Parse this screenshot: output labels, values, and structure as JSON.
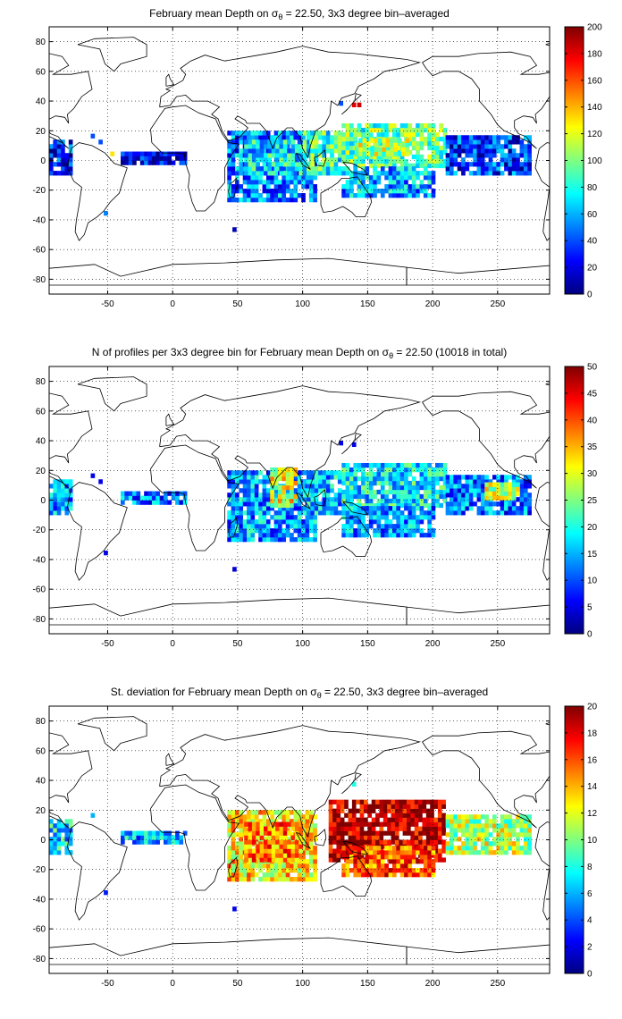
{
  "figure": {
    "panels": [
      {
        "title_before": "February ",
        "title_mean_word": "mean",
        "title_mid": " Depth on ",
        "title_sigma": "σ",
        "title_sub": "θ",
        "title_after": " = 22.50, 3x3 degree bin–averaged"
      },
      {
        "title_before": "N of profiles per 3x3 degree bin for February ",
        "title_mean_word": "mean",
        "title_mid": " Depth on ",
        "title_sigma": "σ",
        "title_sub": "θ",
        "title_after": " = 22.50 (10018 in total)"
      },
      {
        "title_before": "St. deviation for February ",
        "title_mean_word": "mean",
        "title_mid": " Depth on ",
        "title_sigma": "σ",
        "title_sub": "θ",
        "title_after": " = 22.50, 3x3 degree bin–averaged"
      }
    ],
    "colormap": "jet"
  },
  "chart_data": [
    {
      "type": "heatmap",
      "title": "February mean Depth on σθ = 22.50, 3x3 degree bin–averaged",
      "x_ticks": [
        -50,
        0,
        50,
        100,
        150,
        200,
        250
      ],
      "y_ticks": [
        -80,
        -60,
        -40,
        -20,
        0,
        20,
        40,
        60,
        80
      ],
      "xlim": [
        -95,
        290
      ],
      "ylim": [
        -90,
        90
      ],
      "grid": "dotted",
      "colorbar": {
        "range": [
          0,
          200
        ],
        "ticks": [
          0,
          20,
          40,
          60,
          80,
          100,
          120,
          140,
          160,
          180,
          200
        ]
      },
      "bin_size_deg": 3,
      "regions": [
        {
          "lon": [
            -95,
            -78
          ],
          "lat": [
            -10,
            14
          ],
          "value": 30
        },
        {
          "lon": [
            -40,
            10
          ],
          "lat": [
            -3,
            5
          ],
          "value": 20
        },
        {
          "lon": [
            42,
            110
          ],
          "lat": [
            -28,
            18
          ],
          "value": 50
        },
        {
          "lon": [
            55,
            100
          ],
          "lat": [
            -10,
            12
          ],
          "value": 70
        },
        {
          "lon": [
            100,
            130
          ],
          "lat": [
            -10,
            20
          ],
          "value": 85
        },
        {
          "lon": [
            130,
            210
          ],
          "lat": [
            -5,
            25
          ],
          "value": 95
        },
        {
          "lon": [
            140,
            180
          ],
          "lat": [
            3,
            15
          ],
          "value": 108
        },
        {
          "lon": [
            130,
            200
          ],
          "lat": [
            -25,
            -5
          ],
          "value": 60
        },
        {
          "lon": [
            210,
            275
          ],
          "lat": [
            -10,
            15
          ],
          "value": 35
        }
      ],
      "points": [
        {
          "lon": -63,
          "lat": 15,
          "value": 40
        },
        {
          "lon": -57,
          "lat": 11,
          "value": 40
        },
        {
          "lon": -48,
          "lat": 3,
          "value": 130
        },
        {
          "lon": -53,
          "lat": -37,
          "value": 50
        },
        {
          "lon": 46,
          "lat": -48,
          "value": 10
        },
        {
          "lon": 138,
          "lat": 36,
          "value": 180
        },
        {
          "lon": 142,
          "lat": 36,
          "value": 185
        },
        {
          "lon": 128,
          "lat": 37,
          "value": 40
        }
      ]
    },
    {
      "type": "heatmap",
      "title": "N of profiles per 3x3 degree bin for February mean Depth on σθ = 22.50 (10018 in total)",
      "x_ticks": [
        -50,
        0,
        50,
        100,
        150,
        200,
        250
      ],
      "y_ticks": [
        -80,
        -60,
        -40,
        -20,
        0,
        20,
        40,
        60,
        80
      ],
      "xlim": [
        -95,
        290
      ],
      "ylim": [
        -90,
        90
      ],
      "grid": "dotted",
      "colorbar": {
        "range": [
          0,
          50
        ],
        "ticks": [
          0,
          5,
          10,
          15,
          20,
          25,
          30,
          35,
          40,
          45,
          50
        ]
      },
      "bin_size_deg": 3,
      "total_profiles": 10018,
      "regions": [
        {
          "lon": [
            -95,
            -78
          ],
          "lat": [
            -10,
            14
          ],
          "value": 15
        },
        {
          "lon": [
            -40,
            10
          ],
          "lat": [
            -3,
            5
          ],
          "value": 12
        },
        {
          "lon": [
            42,
            110
          ],
          "lat": [
            -28,
            18
          ],
          "value": 14
        },
        {
          "lon": [
            75,
            95
          ],
          "lat": [
            -5,
            22
          ],
          "value": 30
        },
        {
          "lon": [
            100,
            130
          ],
          "lat": [
            -10,
            20
          ],
          "value": 16
        },
        {
          "lon": [
            130,
            210
          ],
          "lat": [
            -5,
            25
          ],
          "value": 18
        },
        {
          "lon": [
            130,
            200
          ],
          "lat": [
            -25,
            -5
          ],
          "value": 14
        },
        {
          "lon": [
            210,
            275
          ],
          "lat": [
            -10,
            15
          ],
          "value": 12
        },
        {
          "lon": [
            240,
            265
          ],
          "lat": [
            0,
            12
          ],
          "value": 28
        }
      ],
      "points": [
        {
          "lon": -63,
          "lat": 15,
          "value": 5
        },
        {
          "lon": -57,
          "lat": 11,
          "value": 5
        },
        {
          "lon": -53,
          "lat": -37,
          "value": 5
        },
        {
          "lon": 46,
          "lat": -48,
          "value": 4
        },
        {
          "lon": 138,
          "lat": 36,
          "value": 5
        },
        {
          "lon": 128,
          "lat": 37,
          "value": 5
        }
      ]
    },
    {
      "type": "heatmap",
      "title": "St. deviation for February mean Depth on σθ = 22.50, 3x3 degree bin–averaged",
      "x_ticks": [
        -50,
        0,
        50,
        100,
        150,
        200,
        250
      ],
      "y_ticks": [
        -80,
        -60,
        -40,
        -20,
        0,
        20,
        40,
        60,
        80
      ],
      "xlim": [
        -95,
        290
      ],
      "ylim": [
        -90,
        90
      ],
      "grid": "dotted",
      "colorbar": {
        "range": [
          0,
          20
        ],
        "ticks": [
          0,
          2,
          4,
          6,
          8,
          10,
          12,
          14,
          16,
          18,
          20
        ]
      },
      "bin_size_deg": 3,
      "regions": [
        {
          "lon": [
            -95,
            -78
          ],
          "lat": [
            -10,
            14
          ],
          "value": 7
        },
        {
          "lon": [
            -40,
            10
          ],
          "lat": [
            -3,
            5
          ],
          "value": 6
        },
        {
          "lon": [
            42,
            110
          ],
          "lat": [
            -28,
            18
          ],
          "value": 13
        },
        {
          "lon": [
            55,
            100
          ],
          "lat": [
            -15,
            10
          ],
          "value": 15
        },
        {
          "lon": [
            120,
            210
          ],
          "lat": [
            -15,
            25
          ],
          "value": 19
        },
        {
          "lon": [
            130,
            200
          ],
          "lat": [
            -25,
            -5
          ],
          "value": 16
        },
        {
          "lon": [
            210,
            275
          ],
          "lat": [
            -10,
            15
          ],
          "value": 11
        }
      ],
      "points": [
        {
          "lon": -63,
          "lat": 15,
          "value": 6
        },
        {
          "lon": -53,
          "lat": -37,
          "value": 3
        },
        {
          "lon": 46,
          "lat": -48,
          "value": 2
        },
        {
          "lon": 138,
          "lat": 36,
          "value": 8
        }
      ]
    }
  ]
}
